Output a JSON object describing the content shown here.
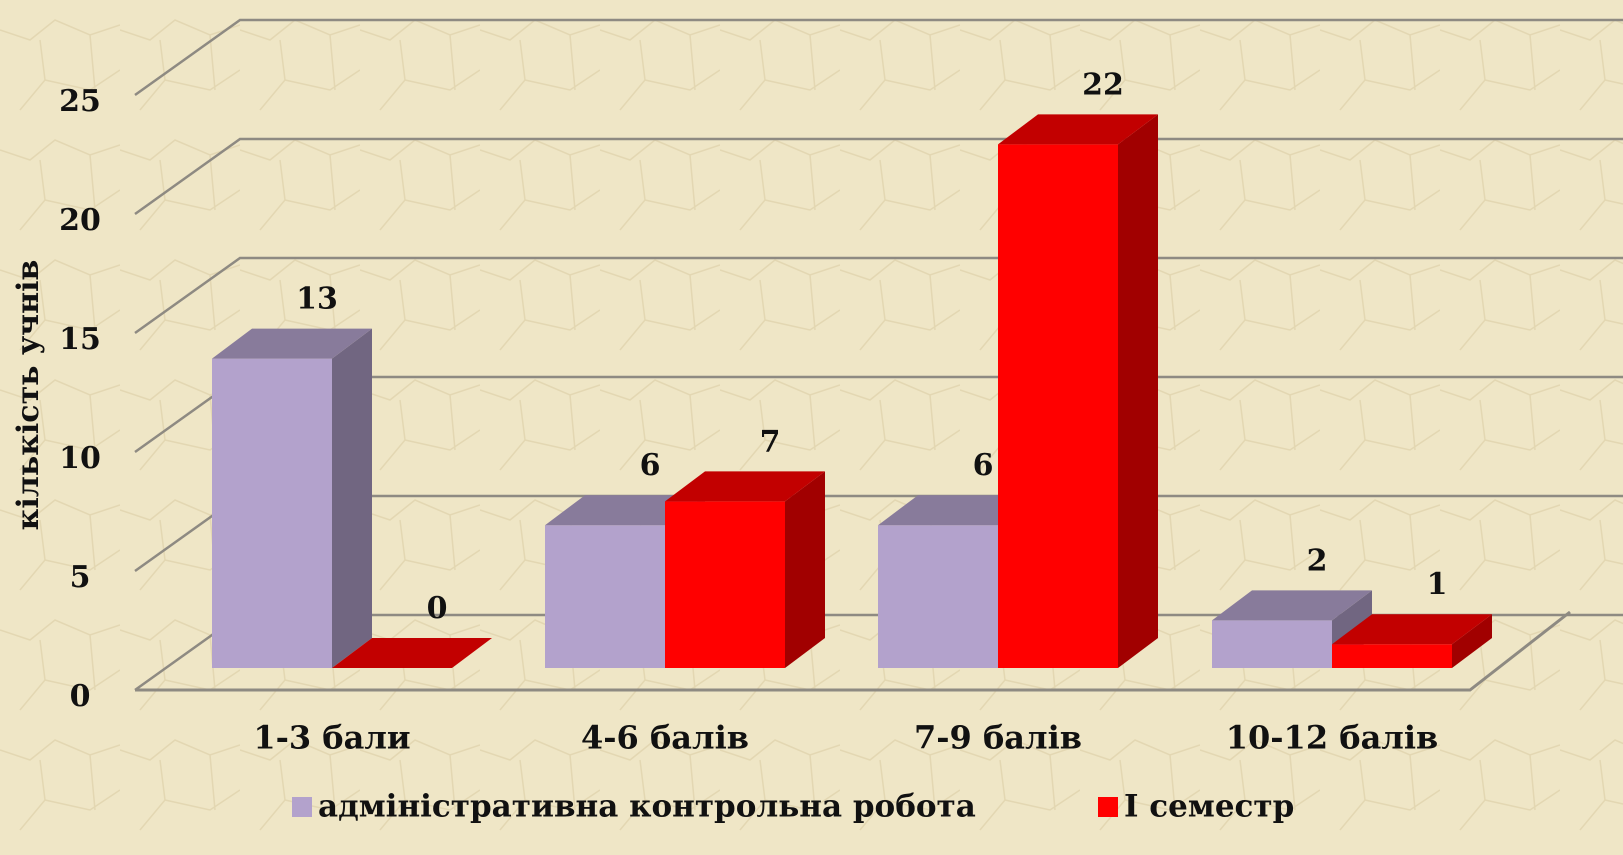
{
  "chart_data": {
    "type": "bar3d",
    "y_label": "кількість учнів",
    "categories": [
      "1-3 бали",
      "4-6 балів",
      "7-9 балів",
      "10-12 балів"
    ],
    "series": [
      {
        "name": "адміністративна контрольна робота",
        "color": "#b3a2cc",
        "values": [
          13,
          6,
          6,
          2
        ]
      },
      {
        "name": "І семестр",
        "color": "#ff0000",
        "values": [
          0,
          7,
          22,
          1
        ]
      }
    ],
    "ylim": [
      0,
      25
    ],
    "yticks": [
      0,
      5,
      10,
      15,
      20,
      25
    ],
    "grid": true,
    "legend": "bottom"
  }
}
